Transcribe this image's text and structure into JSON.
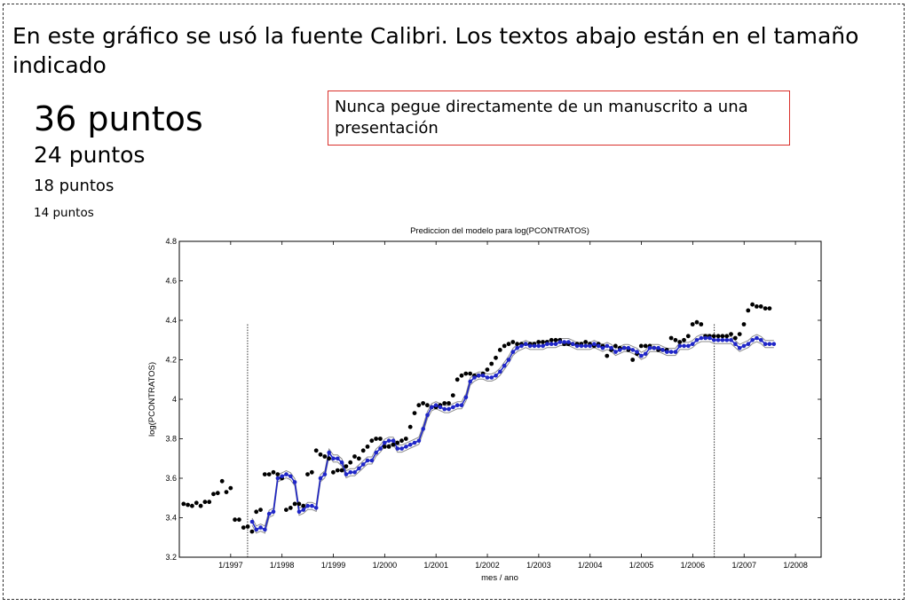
{
  "slide": {
    "heading": "En este gráfico se usó la fuente Calibri.  Los textos abajo están en el tamaño indicado",
    "size_samples": [
      "36 puntos",
      "24 puntos",
      "18 puntos",
      "14 puntos"
    ],
    "note": "Nunca pegue directamente de un manuscrito a una presentación",
    "colors": {
      "note_border": "#d9302b",
      "model_line": "#1f26c8",
      "band": "#8c8c8c",
      "points": "#000000"
    }
  },
  "chart_data": {
    "type": "line",
    "title": "Prediccion del modelo para log(PCONTRATOS)",
    "xlabel": "mes / ano",
    "ylabel": "log(PCONTRATOS)",
    "ylim": [
      3.2,
      4.8
    ],
    "yticks": [
      3.2,
      3.4,
      3.6,
      3.8,
      4,
      4.2,
      4.4,
      4.6,
      4.8
    ],
    "ytick_labels": [
      "3.2",
      "3.4",
      "3.6",
      "3.8",
      "4",
      "4.2",
      "4.4",
      "4.6",
      "4.8"
    ],
    "xlim": [
      1996.0,
      2008.5
    ],
    "xticks": [
      1997,
      1998,
      1999,
      2000,
      2001,
      2002,
      2003,
      2004,
      2005,
      2006,
      2007,
      2008
    ],
    "xtick_labels": [
      "1/1997",
      "1/1998",
      "1/1999",
      "1/2000",
      "1/2001",
      "1/2002",
      "1/2003",
      "1/2004",
      "1/2005",
      "1/2006",
      "1/2007",
      "1/2008"
    ],
    "vlines": [
      1997.33,
      2006.42
    ],
    "grid": false,
    "observed": {
      "x_start": 1996.083,
      "step": 0.0833,
      "values": [
        3.47,
        3.465,
        3.46,
        3.475,
        3.46,
        3.48,
        3.48,
        3.52,
        3.525,
        3.585,
        3.53,
        3.55,
        3.39,
        3.39,
        3.35,
        3.355,
        3.33,
        3.43,
        3.44,
        3.62,
        3.62,
        3.63,
        3.62,
        3.6,
        3.44,
        3.45,
        3.47,
        3.47,
        3.46,
        3.62,
        3.63,
        3.74,
        3.72,
        3.71,
        3.7,
        3.63,
        3.64,
        3.64,
        3.66,
        3.68,
        3.71,
        3.7,
        3.74,
        3.76,
        3.79,
        3.8,
        3.8,
        3.76,
        3.76,
        3.77,
        3.78,
        3.79,
        3.8,
        3.86,
        3.93,
        3.97,
        3.98,
        3.97,
        3.96,
        3.96,
        3.97,
        3.98,
        3.98,
        4.02,
        4.1,
        4.12,
        4.13,
        4.13,
        4.12,
        4.12,
        4.13,
        4.15,
        4.18,
        4.21,
        4.25,
        4.27,
        4.28,
        4.29,
        4.28,
        4.28,
        4.28,
        4.28,
        4.28,
        4.29,
        4.29,
        4.29,
        4.3,
        4.3,
        4.3,
        4.28,
        4.28,
        4.28,
        4.28,
        4.28,
        4.29,
        4.28,
        4.27,
        4.28,
        4.27,
        4.22,
        4.25,
        4.27,
        4.26,
        4.26,
        4.25,
        4.2,
        4.23,
        4.27,
        4.27,
        4.27,
        4.26,
        4.25,
        4.25,
        4.25,
        4.31,
        4.3,
        4.29,
        4.3,
        4.32,
        4.38,
        4.39,
        4.38,
        4.32,
        4.32,
        4.32,
        4.32,
        4.32,
        4.32,
        4.33,
        4.31,
        4.33,
        4.38,
        4.45,
        4.48,
        4.47,
        4.47,
        4.46,
        4.46
      ]
    },
    "model": {
      "x_start": 1997.417,
      "step": 0.0833,
      "values": [
        3.38,
        3.34,
        3.35,
        3.34,
        3.42,
        3.43,
        3.6,
        3.61,
        3.62,
        3.61,
        3.58,
        3.43,
        3.44,
        3.46,
        3.46,
        3.45,
        3.6,
        3.62,
        3.73,
        3.7,
        3.7,
        3.68,
        3.62,
        3.63,
        3.63,
        3.65,
        3.67,
        3.69,
        3.69,
        3.73,
        3.75,
        3.78,
        3.79,
        3.79,
        3.75,
        3.75,
        3.76,
        3.77,
        3.78,
        3.79,
        3.85,
        3.92,
        3.96,
        3.97,
        3.96,
        3.95,
        3.95,
        3.96,
        3.97,
        3.97,
        4.01,
        4.09,
        4.11,
        4.12,
        4.12,
        4.11,
        4.11,
        4.12,
        4.14,
        4.17,
        4.2,
        4.24,
        4.26,
        4.27,
        4.28,
        4.27,
        4.27,
        4.27,
        4.27,
        4.28,
        4.28,
        4.28,
        4.29,
        4.29,
        4.29,
        4.28,
        4.27,
        4.27,
        4.27,
        4.27,
        4.28,
        4.27,
        4.26,
        4.27,
        4.26,
        4.24,
        4.25,
        4.26,
        4.26,
        4.25,
        4.24,
        4.22,
        4.23,
        4.26,
        4.26,
        4.26,
        4.25,
        4.24,
        4.24,
        4.24,
        4.27,
        4.27,
        4.27,
        4.28,
        4.3,
        4.31,
        4.31,
        4.31,
        4.3,
        4.3,
        4.3,
        4.3,
        4.3,
        4.28,
        4.26,
        4.27,
        4.28,
        4.3,
        4.31,
        4.3,
        4.28,
        4.28,
        4.28
      ]
    }
  }
}
